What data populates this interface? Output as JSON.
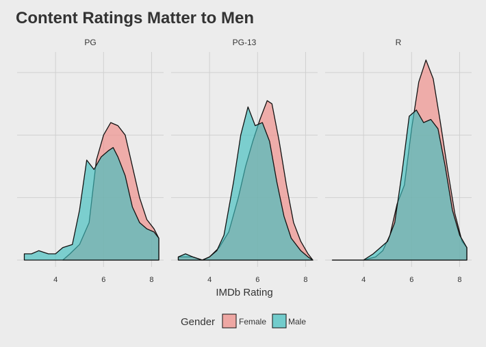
{
  "chart_data": {
    "type": "area",
    "title": "Content Ratings Matter to Men",
    "xlabel": "IMDb Rating",
    "ylabel": "",
    "xlim": [
      2.4,
      8.5
    ],
    "ylim": [
      0,
      0.66
    ],
    "xticks": [
      4,
      6,
      8
    ],
    "gridlines_y": [
      0.2,
      0.4,
      0.6
    ],
    "grid": true,
    "legend": {
      "title": "Gender",
      "position": "bottom"
    },
    "colors": {
      "Female": "#f08a85",
      "Male": "#3fbfbf"
    },
    "panels": [
      {
        "label": "PG",
        "series": [
          {
            "name": "Female",
            "x": [
              4.3,
              4.6,
              5.0,
              5.4,
              5.7,
              6.0,
              6.3,
              6.6,
              6.9,
              7.2,
              7.5,
              7.8,
              8.1,
              8.3
            ],
            "y": [
              0.0,
              0.02,
              0.05,
              0.12,
              0.32,
              0.4,
              0.44,
              0.43,
              0.4,
              0.3,
              0.2,
              0.13,
              0.1,
              0.07
            ]
          },
          {
            "name": "Male",
            "x": [
              2.7,
              3.0,
              3.3,
              3.7,
              4.0,
              4.3,
              4.7,
              5.0,
              5.3,
              5.6,
              5.9,
              6.2,
              6.4,
              6.6,
              6.9,
              7.2,
              7.5,
              7.8,
              8.1,
              8.3
            ],
            "y": [
              0.02,
              0.02,
              0.03,
              0.02,
              0.02,
              0.04,
              0.05,
              0.16,
              0.32,
              0.29,
              0.33,
              0.35,
              0.36,
              0.33,
              0.27,
              0.17,
              0.12,
              0.1,
              0.09,
              0.07
            ]
          }
        ]
      },
      {
        "label": "PG-13",
        "series": [
          {
            "name": "Female",
            "x": [
              2.7,
              3.0,
              3.3,
              3.7,
              4.0,
              4.4,
              4.8,
              5.2,
              5.5,
              5.8,
              6.1,
              6.4,
              6.6,
              6.9,
              7.2,
              7.5,
              7.8,
              8.1,
              8.3
            ],
            "y": [
              0.01,
              0.01,
              0.01,
              0.0,
              0.01,
              0.04,
              0.09,
              0.2,
              0.3,
              0.38,
              0.45,
              0.51,
              0.5,
              0.38,
              0.24,
              0.12,
              0.06,
              0.02,
              0.0
            ]
          },
          {
            "name": "Male",
            "x": [
              2.7,
              3.0,
              3.3,
              3.7,
              4.0,
              4.3,
              4.6,
              5.0,
              5.3,
              5.6,
              5.9,
              6.2,
              6.5,
              6.8,
              7.1,
              7.4,
              7.8,
              8.1,
              8.3
            ],
            "y": [
              0.01,
              0.02,
              0.01,
              0.0,
              0.01,
              0.03,
              0.08,
              0.25,
              0.4,
              0.49,
              0.43,
              0.44,
              0.38,
              0.25,
              0.14,
              0.07,
              0.03,
              0.01,
              0.0
            ]
          }
        ]
      },
      {
        "label": "R",
        "series": [
          {
            "name": "Female",
            "x": [
              2.7,
              4.0,
              4.5,
              4.8,
              5.1,
              5.4,
              5.7,
              6.0,
              6.3,
              6.6,
              6.9,
              7.2,
              7.5,
              7.8,
              8.1,
              8.3
            ],
            "y": [
              0.0,
              0.0,
              0.01,
              0.03,
              0.08,
              0.18,
              0.24,
              0.42,
              0.57,
              0.64,
              0.58,
              0.44,
              0.29,
              0.15,
              0.06,
              0.04
            ]
          },
          {
            "name": "Male",
            "x": [
              2.7,
              4.0,
              4.4,
              4.7,
              5.0,
              5.3,
              5.6,
              5.9,
              6.2,
              6.5,
              6.8,
              7.1,
              7.4,
              7.7,
              8.0,
              8.3
            ],
            "y": [
              0.0,
              0.0,
              0.02,
              0.04,
              0.06,
              0.12,
              0.28,
              0.46,
              0.48,
              0.44,
              0.45,
              0.42,
              0.3,
              0.16,
              0.08,
              0.04
            ]
          }
        ]
      }
    ]
  }
}
